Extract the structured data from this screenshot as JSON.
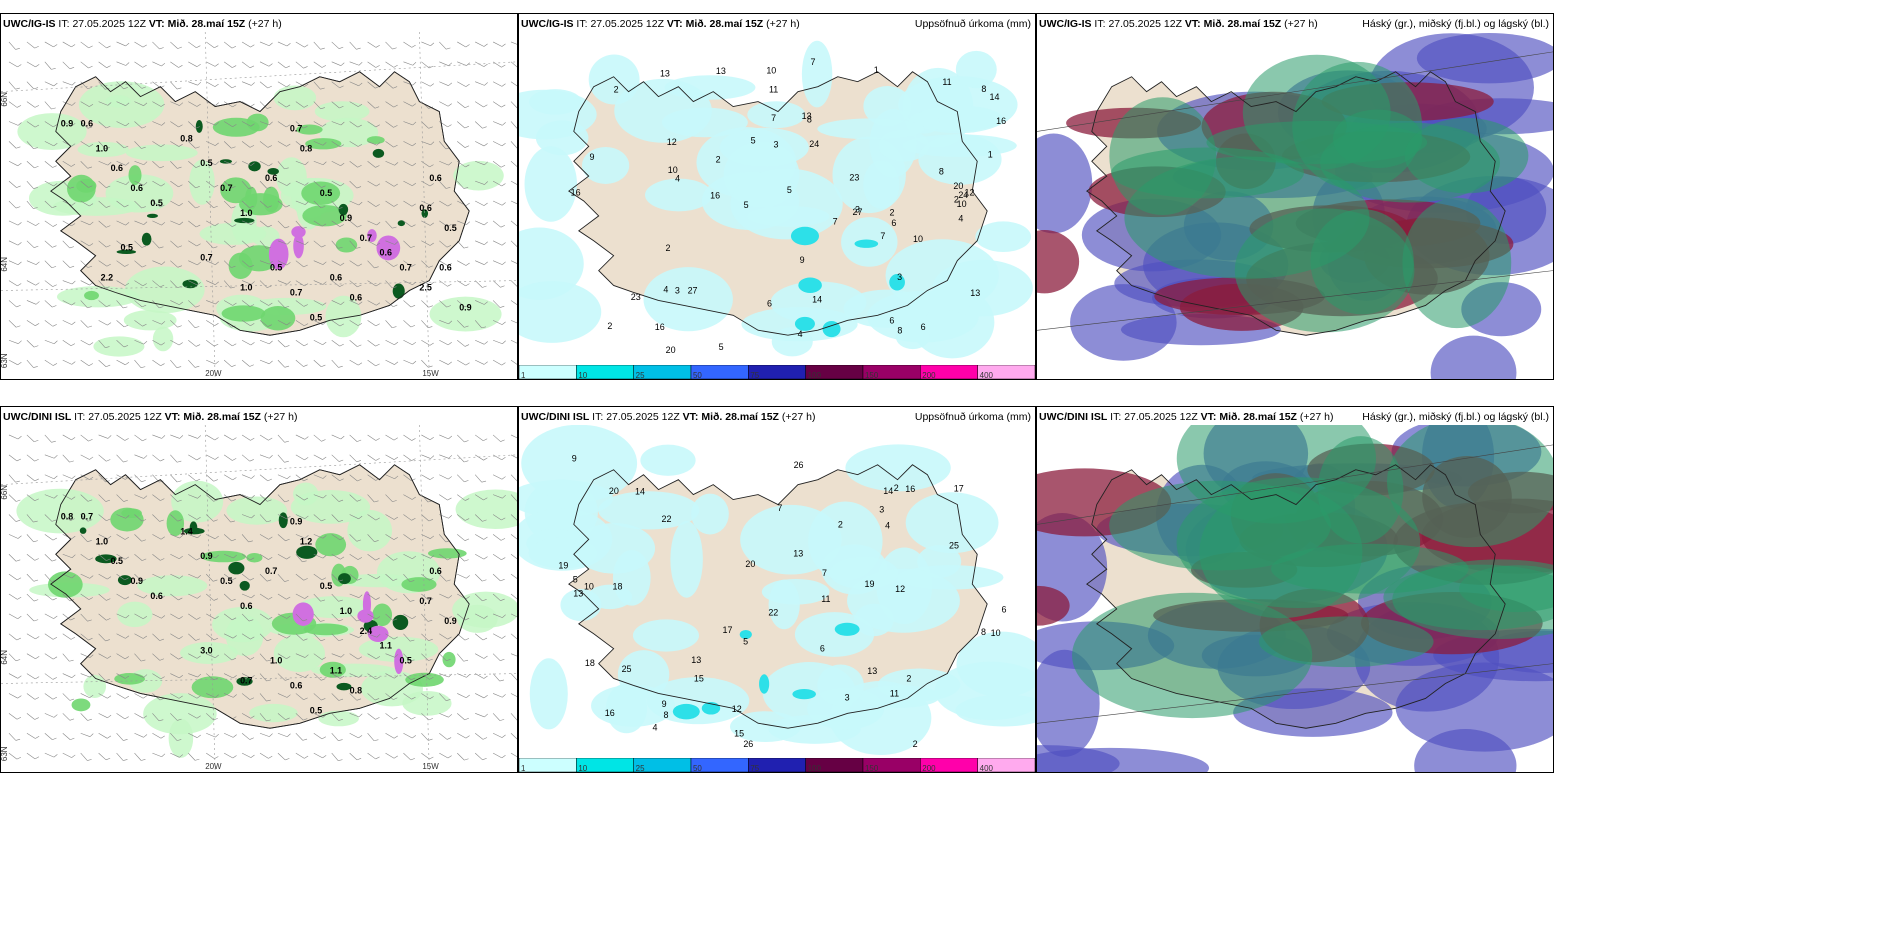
{
  "panels": [
    {
      "model": "UWC/IG-IS",
      "it_label": "IT:",
      "it": "27.05.2025 12Z",
      "vt_label": "VT:",
      "vt": "Mið. 28.maí 15Z",
      "lead": "(+27 h)",
      "right": ""
    },
    {
      "model": "UWC/IG-IS",
      "it_label": "IT:",
      "it": "27.05.2025 12Z",
      "vt_label": "VT:",
      "vt": "Mið. 28.maí 15Z",
      "lead": "(+27 h)",
      "right": "Uppsöfnuð úrkoma (mm)"
    },
    {
      "model": "UWC/IG-IS",
      "it_label": "IT:",
      "it": "27.05.2025 12Z",
      "vt_label": "VT:",
      "vt": "Mið. 28.maí 15Z",
      "lead": "(+27 h)",
      "right": "Háský (gr.), miðský (fj.bl.) og lágský (bl.)"
    },
    {
      "model": "UWC/DINI ISL",
      "it_label": "IT:",
      "it": "27.05.2025 12Z",
      "vt_label": "VT:",
      "vt": "Mið. 28.maí 15Z",
      "lead": "(+27 h)",
      "right": ""
    },
    {
      "model": "UWC/DINI ISL",
      "it_label": "IT:",
      "it": "27.05.2025 12Z",
      "vt_label": "VT:",
      "vt": "Mið. 28.maí 15Z",
      "lead": "(+27 h)",
      "right": "Uppsöfnuð úrkoma (mm)"
    },
    {
      "model": "UWC/DINI ISL",
      "it_label": "IT:",
      "it": "27.05.2025 12Z",
      "vt_label": "VT:",
      "vt": "Mið. 28.maí 15Z",
      "lead": "(+27 h)",
      "right": "Háský (gr.), miðský (fj.bl.) og lágský (bl.)"
    }
  ],
  "axis_labels": {
    "lat_66": "66N",
    "lat_64": "64N",
    "lat_63": "63N",
    "lon_20": "20W",
    "lon_15": "15W"
  },
  "colorbar": {
    "ticks": [
      "1",
      "10",
      "25",
      "50",
      "75",
      "100",
      "150",
      "200",
      "400"
    ],
    "colors": [
      "#ccffff",
      "#00e5e5",
      "#00bfe6",
      "#3366ff",
      "#2020b0",
      "#660044",
      "#990066",
      "#ff00aa",
      "#ffaaee"
    ]
  },
  "colors": {
    "land": "#ece0cf",
    "rain_light": "#c6f7c6",
    "rain_mid": "#6fd66f",
    "rain_dark": "#0b5a20",
    "precip_light": "#c8f8fb",
    "precip_mid": "#2de0e8",
    "cloud_high": "#2a9a6a",
    "cloud_mid": "#8b1c3c",
    "cloud_low": "#5050c0"
  },
  "wind_labels": {
    "top": [
      "0.9",
      "0.6",
      "1.0",
      "0.6",
      "0.6",
      "0.5",
      "0.8",
      "0.5",
      "0.7",
      "1.0",
      "0.6",
      "0.7",
      "0.8",
      "0.5",
      "0.9",
      "0.7",
      "0.6",
      "0.7",
      "0.6",
      "0.6",
      "0.5",
      "0.5",
      "0.7",
      "0.5",
      "0.6",
      "0.6",
      "1.0",
      "0.7",
      "0.5",
      "2.2",
      "2.5",
      "0.6",
      "0.9"
    ],
    "bottom": [
      "0.8",
      "0.7",
      "1.0",
      "0.5",
      "0.9",
      "0.6",
      "1.4",
      "0.9",
      "0.5",
      "0.6",
      "0.7",
      "0.9",
      "1.2",
      "0.5",
      "1.0",
      "2.4",
      "1.1",
      "0.5",
      "0.7",
      "0.6",
      "0.9",
      "1.0",
      "0.6",
      "0.5",
      "1.1",
      "0.8",
      "0.7",
      "3.0"
    ]
  },
  "precip_labels": {
    "top": [
      "1",
      "23",
      "2",
      "4",
      "3",
      "12",
      "8",
      "5",
      "2",
      "16",
      "7",
      "10",
      "13",
      "6",
      "20",
      "24",
      "9",
      "14",
      "27",
      "16",
      "13",
      "11",
      "2",
      "5",
      "3",
      "7",
      "6",
      "10",
      "4",
      "8"
    ],
    "bottom": [
      "2",
      "25",
      "13",
      "17",
      "16",
      "10",
      "12",
      "8",
      "5",
      "14",
      "6",
      "20",
      "18",
      "22",
      "26",
      "15",
      "9",
      "11",
      "7",
      "4",
      "3",
      "13",
      "2",
      "19"
    ]
  }
}
